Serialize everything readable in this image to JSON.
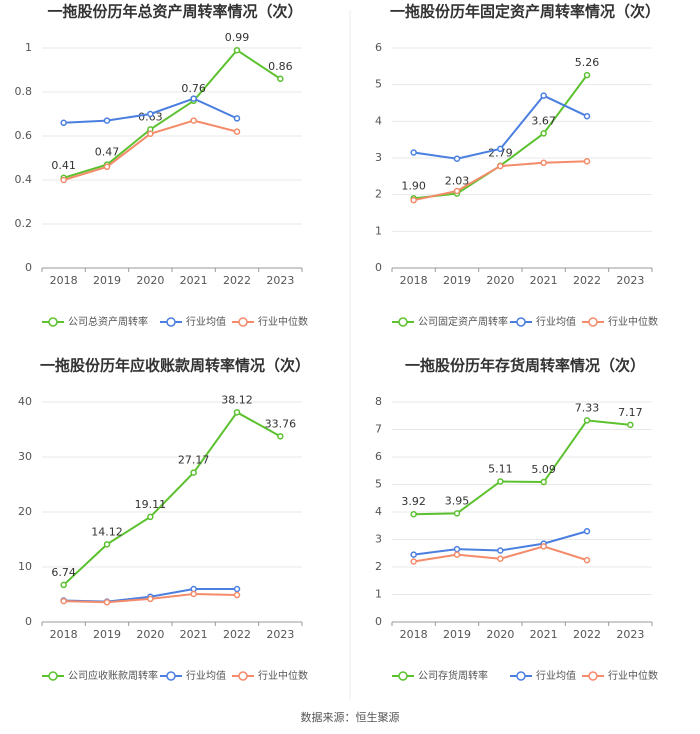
{
  "chart_data": [
    {
      "type": "line",
      "title": "一拖股份历年总资产周转率情况（次）",
      "categories": [
        "2018",
        "2019",
        "2020",
        "2021",
        "2022",
        "2023"
      ],
      "ylim": [
        0,
        1
      ],
      "yticks": [
        0,
        0.2,
        0.4,
        0.6,
        0.8,
        1
      ],
      "grid": true,
      "legend": "bottom",
      "series": [
        {
          "name": "公司总资产周转率",
          "color": "#5cc12f",
          "values": [
            0.41,
            0.47,
            0.63,
            0.76,
            0.99,
            0.86
          ],
          "value_labels": [
            "0.41",
            "0.47",
            "0.63",
            "0.76",
            "0.99",
            "0.86"
          ]
        },
        {
          "name": "行业均值",
          "color": "#4a7fe0",
          "values": [
            0.66,
            0.67,
            0.7,
            0.77,
            0.68,
            null
          ]
        },
        {
          "name": "行业中位数",
          "color": "#f48b6a",
          "values": [
            0.4,
            0.46,
            0.61,
            0.67,
            0.62,
            null
          ]
        }
      ]
    },
    {
      "type": "line",
      "title": "一拖股份历年固定资产周转率情况（次）",
      "categories": [
        "2018",
        "2019",
        "2020",
        "2021",
        "2022",
        "2023"
      ],
      "ylim": [
        0,
        6
      ],
      "yticks": [
        0,
        1,
        2,
        3,
        4,
        5,
        6
      ],
      "grid": true,
      "legend": "bottom",
      "series": [
        {
          "name": "公司固定资产周转率",
          "color": "#5cc12f",
          "values": [
            1.9,
            2.03,
            2.79,
            3.67,
            5.26,
            null
          ],
          "value_labels": [
            "1.90",
            "2.03",
            "2.79",
            "3.67",
            "5.26",
            null
          ]
        },
        {
          "name": "行业均值",
          "color": "#4a7fe0",
          "values": [
            3.15,
            2.98,
            3.25,
            4.7,
            4.14,
            null
          ]
        },
        {
          "name": "行业中位数",
          "color": "#f48b6a",
          "values": [
            1.85,
            2.1,
            2.78,
            2.87,
            2.91,
            null
          ]
        }
      ]
    },
    {
      "type": "line",
      "title": "一拖股份历年应收账款周转率情况（次）",
      "categories": [
        "2018",
        "2019",
        "2020",
        "2021",
        "2022",
        "2023"
      ],
      "ylim": [
        0,
        40
      ],
      "yticks": [
        0,
        10,
        20,
        30,
        40
      ],
      "grid": true,
      "legend": "bottom",
      "series": [
        {
          "name": "公司应收账款周转率",
          "color": "#5cc12f",
          "values": [
            6.74,
            14.12,
            19.11,
            27.17,
            38.12,
            33.76
          ],
          "value_labels": [
            "6.74",
            "14.12",
            "19.11",
            "27.17",
            "38.12",
            "33.76"
          ]
        },
        {
          "name": "行业均值",
          "color": "#4a7fe0",
          "values": [
            3.9,
            3.7,
            4.6,
            6.0,
            6.0,
            null
          ]
        },
        {
          "name": "行业中位数",
          "color": "#f48b6a",
          "values": [
            3.8,
            3.6,
            4.2,
            5.1,
            4.9,
            null
          ]
        }
      ]
    },
    {
      "type": "line",
      "title": "一拖股份历年存货周转率情况（次）",
      "categories": [
        "2018",
        "2019",
        "2020",
        "2021",
        "2022",
        "2023"
      ],
      "ylim": [
        0,
        8
      ],
      "yticks": [
        0,
        1,
        2,
        3,
        4,
        5,
        6,
        7,
        8
      ],
      "grid": true,
      "legend": "bottom",
      "series": [
        {
          "name": "公司存货周转率",
          "color": "#5cc12f",
          "values": [
            3.92,
            3.95,
            5.11,
            5.09,
            7.33,
            7.17
          ],
          "value_labels": [
            "3.92",
            "3.95",
            "5.11",
            "5.09",
            "7.33",
            "7.17"
          ]
        },
        {
          "name": "行业均值",
          "color": "#4a7fe0",
          "values": [
            2.45,
            2.65,
            2.6,
            2.85,
            3.3,
            null
          ]
        },
        {
          "name": "行业中位数",
          "color": "#f48b6a",
          "values": [
            2.2,
            2.45,
            2.3,
            2.75,
            2.25,
            null
          ]
        }
      ]
    }
  ],
  "source": "数据来源：恒生聚源"
}
